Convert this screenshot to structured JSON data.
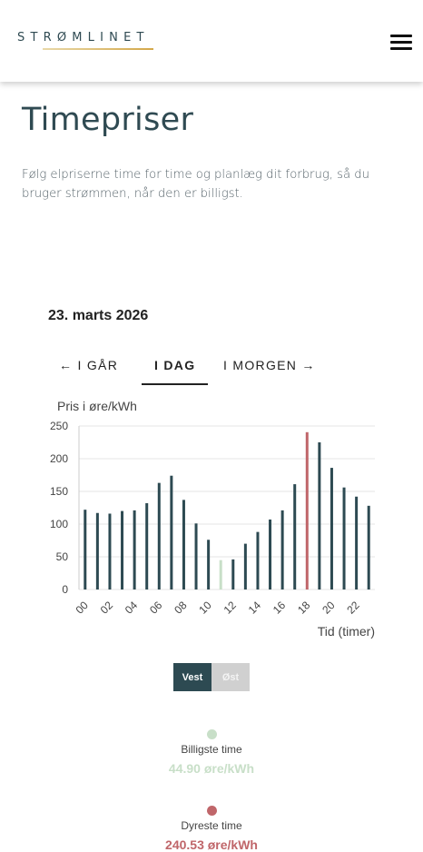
{
  "header": {
    "logo_text": "STRØMLINET",
    "menu_icon": "hamburger-icon"
  },
  "page": {
    "title": "Timepriser",
    "intro": "Følg elpriserne time for time og planlæg dit forbrug, så du bruger strømmen, når den er billigst.",
    "date": "23. marts 2026"
  },
  "tabs": [
    {
      "label": "← I GÅR",
      "active": false
    },
    {
      "label": "I DAG",
      "active": true
    },
    {
      "label": "I MORGEN →",
      "active": false
    }
  ],
  "colors": {
    "bar": "#2d4a52",
    "cheapest": "#c8dfc8",
    "expensive": "#c0666a",
    "logo_line_start": "#e8d8a8",
    "logo_line_end": "#d4a84a"
  },
  "chart_data": {
    "type": "bar",
    "ylabel": "Pris i øre/kWh",
    "xlabel": "Tid (timer)",
    "ylim": [
      0,
      250
    ],
    "yticks": [
      0,
      50,
      100,
      150,
      200,
      250
    ],
    "categories": [
      "00",
      "01",
      "02",
      "03",
      "04",
      "05",
      "06",
      "07",
      "08",
      "09",
      "10",
      "11",
      "12",
      "13",
      "14",
      "15",
      "16",
      "17",
      "18",
      "19",
      "20",
      "21",
      "22",
      "23"
    ],
    "xtick_labels": [
      "00",
      "02",
      "04",
      "06",
      "08",
      "10",
      "12",
      "14",
      "16",
      "18",
      "20",
      "22"
    ],
    "values": [
      122,
      117,
      116,
      120,
      121,
      132,
      163,
      174,
      137,
      101,
      76,
      44.9,
      46,
      70,
      88,
      107,
      121,
      161,
      240.53,
      225,
      186,
      156,
      142,
      128
    ],
    "cheapest_index": 11,
    "expensive_index": 18,
    "grid": true
  },
  "region_toggle": [
    {
      "label": "Vest",
      "active": true
    },
    {
      "label": "Øst",
      "active": false
    }
  ],
  "stats": {
    "cheapest_label": "Billigste time",
    "cheapest_value": "44.90 øre/kWh",
    "expensive_label": "Dyreste time",
    "expensive_value": "240.53 øre/kWh"
  }
}
